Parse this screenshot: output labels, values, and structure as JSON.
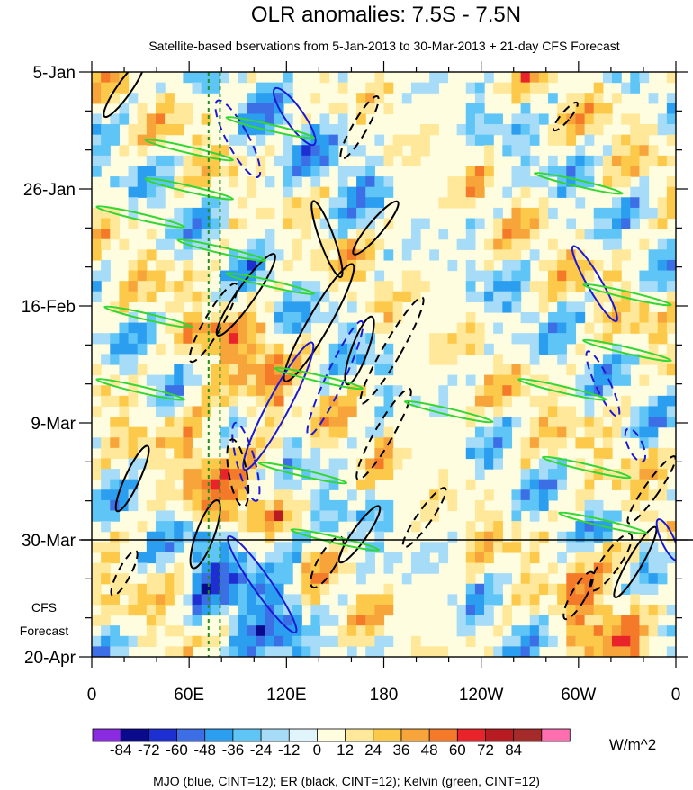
{
  "chart_data": {
    "type": "heatmap",
    "title": "OLR anomalies: 7.5S - 7.5N",
    "subtitle": "Satellite-based bservations from 5-Jan-2013 to 30-Mar-2013 + 21-day CFS Forecast",
    "x_ticks": [
      "0",
      "60E",
      "120E",
      "180",
      "120W",
      "60W",
      "0"
    ],
    "x_tick_lon": [
      0,
      60,
      120,
      180,
      240,
      300,
      360
    ],
    "y_ticks": [
      "5-Jan",
      "26-Jan",
      "16-Feb",
      "9-Mar",
      "30-Mar",
      "20-Apr"
    ],
    "y_tick_day": [
      0,
      21,
      42,
      63,
      84,
      105
    ],
    "y_minor_interval_days": 7,
    "forecast_start_day": 84,
    "forecast_label_lines": [
      "CFS",
      "Forecast"
    ],
    "mjo_reference_lon": [
      72,
      79
    ],
    "colorbar": {
      "labels": [
        "-84",
        "-72",
        "-60",
        "-48",
        "-36",
        "-24",
        "-12",
        "0",
        "12",
        "24",
        "36",
        "48",
        "60",
        "72",
        "84"
      ],
      "colors": [
        "#8a2be2",
        "#0a0a8c",
        "#1e2fd2",
        "#3c6ee6",
        "#2b9ef0",
        "#5fc5f7",
        "#a6dcf8",
        "#dff4fb",
        "#fffde0",
        "#ffe89a",
        "#fdc94a",
        "#f7a53a",
        "#f47a2a",
        "#e8242a",
        "#b81c22",
        "#a52a2a",
        "#ff6fb0"
      ],
      "units": "W/m^2"
    },
    "contour_legend": "MJO (blue, CINT=12); ER (black, CINT=12); Kelvin (green, CINT=12)",
    "series": [
      {
        "name": "MJO",
        "color": "#1a1ad6",
        "cint": 12
      },
      {
        "name": "ER",
        "color": "#000000",
        "cint": 12
      },
      {
        "name": "Kelvin",
        "color": "#33d633",
        "cint": 12
      }
    ]
  }
}
